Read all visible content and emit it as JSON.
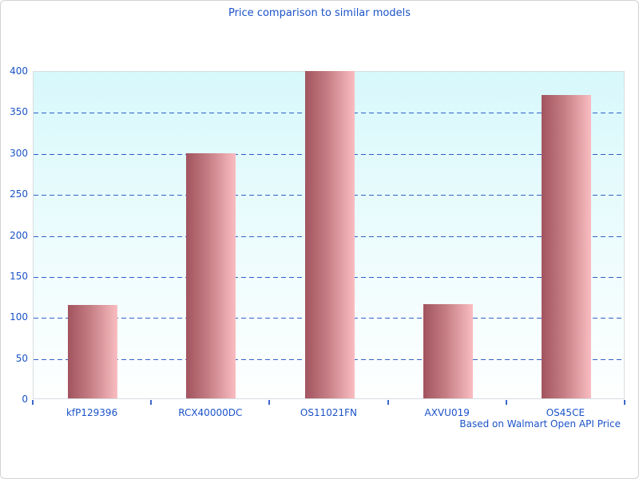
{
  "window": {
    "title": "Price comparison to similar models"
  },
  "chart_data": {
    "type": "bar",
    "title": "Price comparison to similar models",
    "categories": [
      "kfP129396",
      "RCX40000DC",
      "OS11021FN",
      "AXVU019",
      "OS45CE"
    ],
    "values": [
      114,
      299,
      399,
      115,
      370
    ],
    "xlabel": "",
    "ylabel": "",
    "ylim": [
      0,
      400
    ],
    "ytick_step": 50,
    "yticks": [
      0,
      50,
      100,
      150,
      200,
      250,
      300,
      350,
      400
    ],
    "grid": "horizontal-dashed",
    "legend": "none",
    "footnote": "Based on Walmart Open API Price"
  },
  "colors": {
    "text_blue": "#1b53c8",
    "gridline_blue": "#3260c4",
    "bar_gradient_left": "#a2545e",
    "bar_gradient_right": "#f9bdc1",
    "plot_bg_top": "#d7f8fb",
    "plot_bg_bottom": "#feffff",
    "plot_border": "#d9dde0",
    "page_border": "#d2d2d2"
  }
}
